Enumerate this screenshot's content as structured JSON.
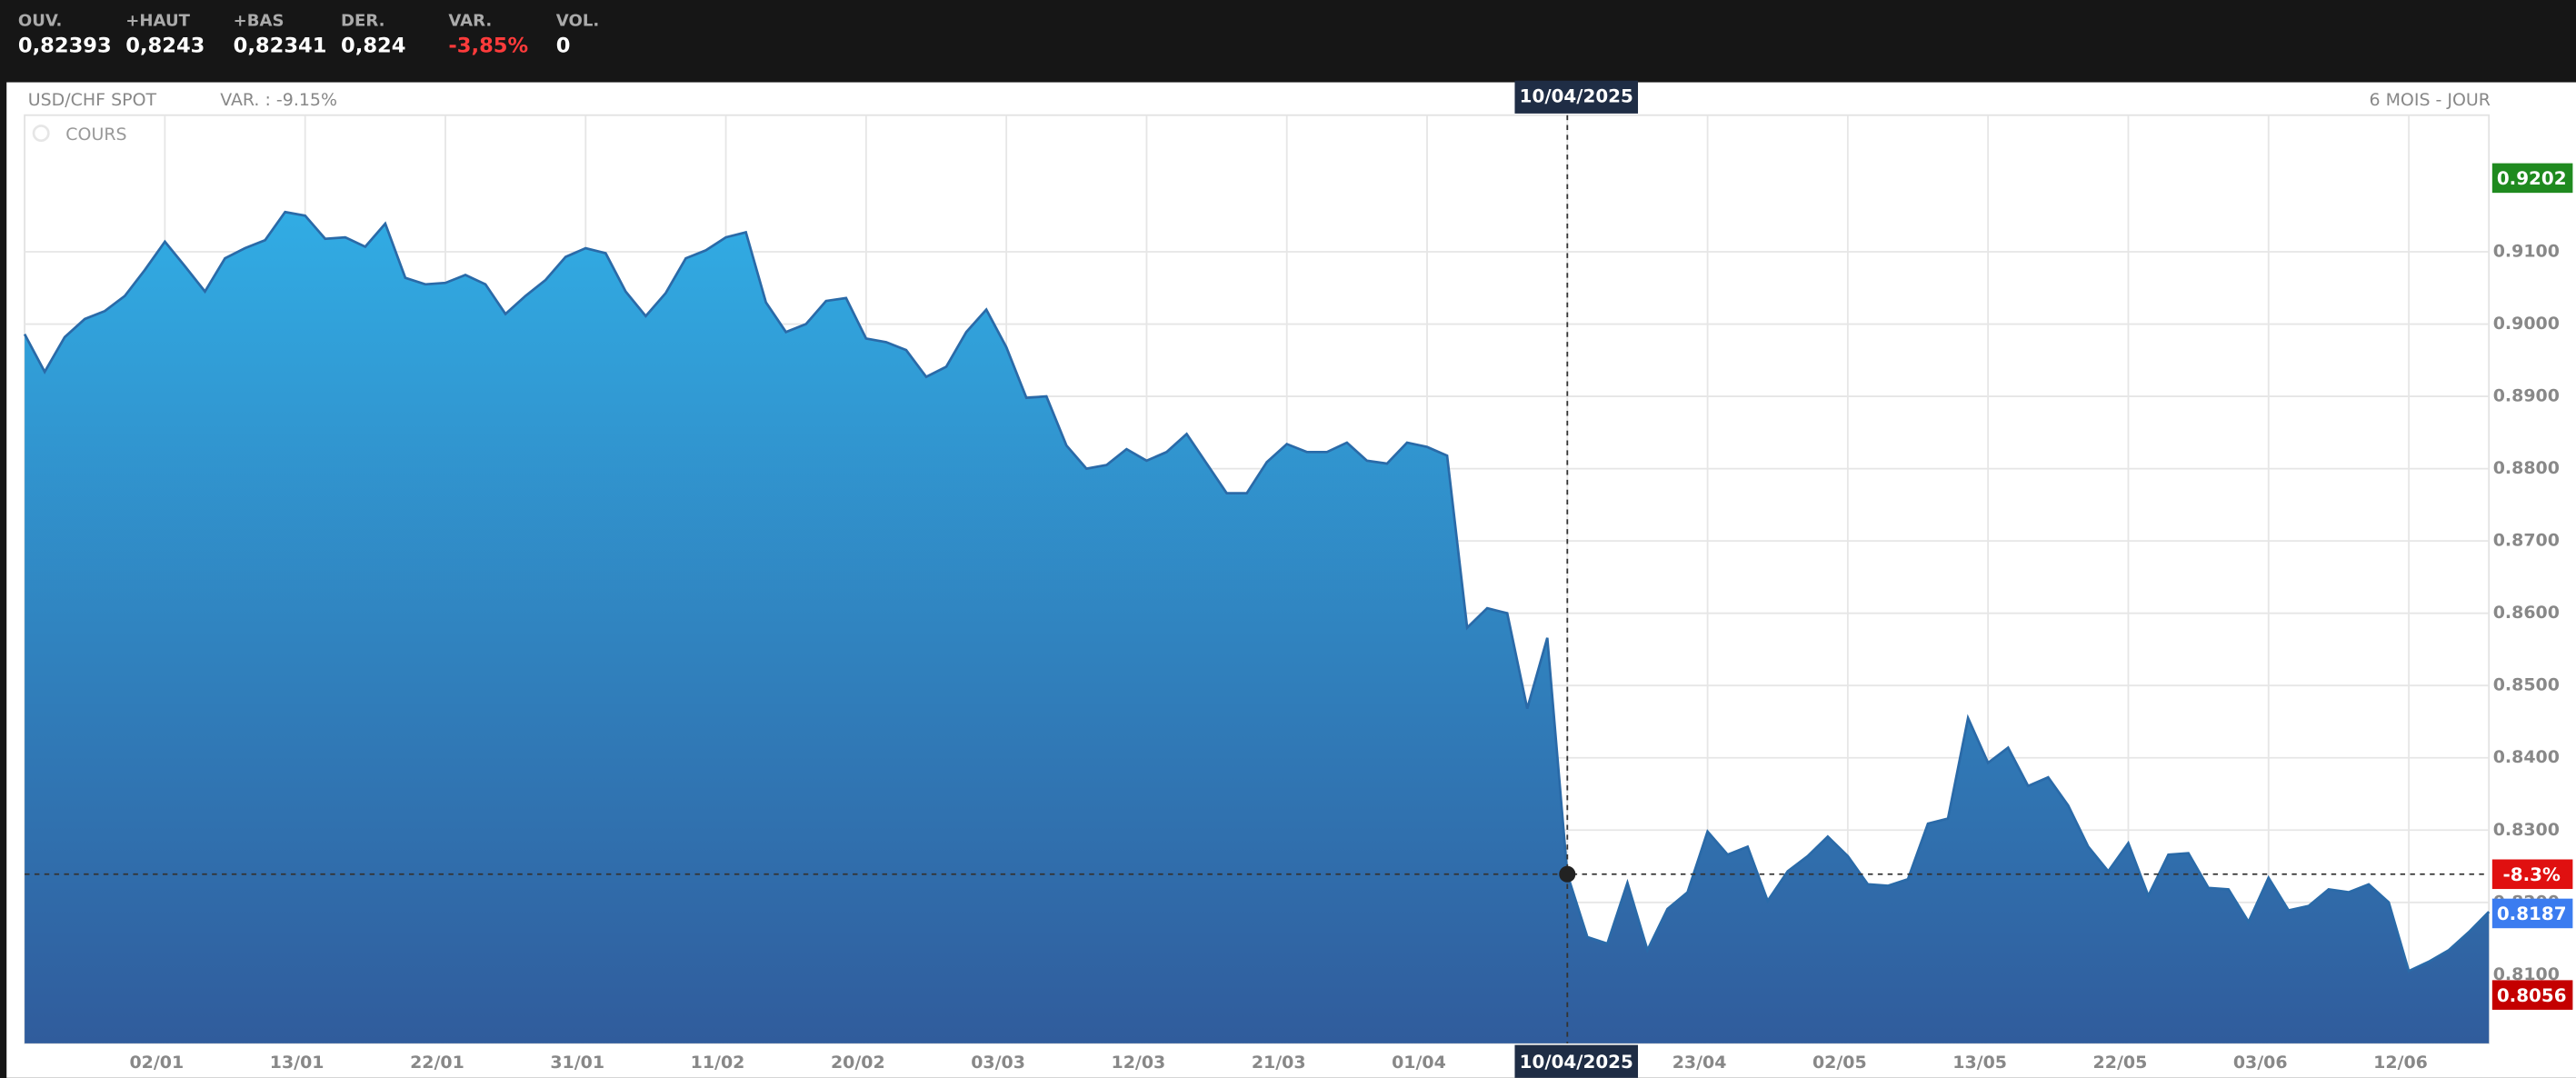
{
  "header": {
    "items": [
      {
        "label": "OUV.",
        "value": "0,82393"
      },
      {
        "label": "+HAUT",
        "value": "0,8243"
      },
      {
        "label": "+BAS",
        "value": "0,82341"
      },
      {
        "label": "DER.",
        "value": "0,824"
      },
      {
        "label": "VAR.",
        "value": "-3,85%",
        "color": "#ff3b3b"
      },
      {
        "label": "VOL.",
        "value": "0"
      }
    ]
  },
  "chart_data": {
    "type": "area",
    "title": "USD/CHF SPOT",
    "subtitle": "VAR. : -9.15%",
    "period": "6 MOIS - JOUR",
    "categories": [
      null,
      null,
      null,
      null,
      null,
      null,
      null,
      "02/01",
      null,
      null,
      null,
      null,
      null,
      null,
      "13/01",
      null,
      null,
      null,
      null,
      null,
      null,
      "22/01",
      null,
      null,
      null,
      null,
      null,
      null,
      "31/01",
      null,
      null,
      null,
      null,
      null,
      null,
      "11/02",
      null,
      null,
      null,
      null,
      null,
      null,
      "20/02",
      null,
      null,
      null,
      null,
      null,
      null,
      "03/03",
      null,
      null,
      null,
      null,
      null,
      null,
      "12/03",
      null,
      null,
      null,
      null,
      null,
      null,
      "21/03",
      null,
      null,
      null,
      null,
      null,
      null,
      "01/04",
      null,
      null,
      null,
      null,
      null,
      null,
      "10/04/2025",
      null,
      null,
      null,
      null,
      null,
      null,
      "23/04",
      null,
      null,
      null,
      null,
      null,
      null,
      "02/05",
      null,
      null,
      null,
      null,
      null,
      null,
      "13/05",
      null,
      null,
      null,
      null,
      null,
      null,
      "22/05",
      null,
      null,
      null,
      null,
      null,
      null,
      "03/06",
      null,
      null,
      null,
      null,
      null,
      null,
      "12/06",
      null,
      null,
      null,
      null
    ],
    "series": [
      {
        "name": "COURS",
        "color": "#2a6aa8",
        "values": [
          0.8986,
          0.8934,
          0.8982,
          0.9007,
          0.9018,
          0.9039,
          0.9075,
          0.9114,
          0.908,
          0.9045,
          0.9091,
          0.9105,
          0.9116,
          0.9155,
          0.915,
          0.9118,
          0.912,
          0.9107,
          0.9139,
          0.9064,
          0.9055,
          0.9057,
          0.9068,
          0.9055,
          0.9014,
          0.9039,
          0.9061,
          0.9093,
          0.9105,
          0.9098,
          0.9045,
          0.9011,
          0.9043,
          0.9091,
          0.9102,
          0.912,
          0.9127,
          0.903,
          0.8989,
          0.9,
          0.9032,
          0.9036,
          0.898,
          0.8975,
          0.8964,
          0.8927,
          0.8941,
          0.8989,
          0.902,
          0.8968,
          0.8898,
          0.89,
          0.8832,
          0.88,
          0.8805,
          0.8827,
          0.8811,
          0.8823,
          0.8848,
          0.8807,
          0.8766,
          0.8766,
          0.8809,
          0.8834,
          0.8823,
          0.8823,
          0.8836,
          0.8811,
          0.8807,
          0.8836,
          0.883,
          0.8818,
          0.858,
          0.8607,
          0.86,
          0.8468,
          0.8566,
          0.8239,
          0.8152,
          0.8143,
          0.8227,
          0.8134,
          0.8191,
          0.8214,
          0.8298,
          0.8266,
          0.8277,
          0.8202,
          0.8243,
          0.8264,
          0.8291,
          0.8264,
          0.8225,
          0.8223,
          0.8232,
          0.8309,
          0.8316,
          0.8455,
          0.8393,
          0.8414,
          0.8361,
          0.8373,
          0.8334,
          0.8277,
          0.8243,
          0.8282,
          0.8209,
          0.8266,
          0.8268,
          0.822,
          0.8218,
          0.8173,
          0.8234,
          0.8189,
          0.8195,
          0.8218,
          0.8214,
          0.8225,
          0.82,
          0.8105,
          0.8118,
          0.8134,
          0.8159,
          0.8187
        ]
      }
    ],
    "ylim": [
      0.8005,
      0.9289
    ],
    "yticks": [
      {
        "value": 0.81,
        "label": "0.8100"
      },
      {
        "value": 0.82,
        "label": "0.8200"
      },
      {
        "value": 0.83,
        "label": "0.8300"
      },
      {
        "value": 0.84,
        "label": "0.8400"
      },
      {
        "value": 0.85,
        "label": "0.8500"
      },
      {
        "value": 0.86,
        "label": "0.8600"
      },
      {
        "value": 0.87,
        "label": "0.8700"
      },
      {
        "value": 0.88,
        "label": "0.8800"
      },
      {
        "value": 0.89,
        "label": "0.8900"
      },
      {
        "value": 0.9,
        "label": "0.9000"
      },
      {
        "value": 0.91,
        "label": "0.9100"
      }
    ],
    "grid": true,
    "high": 0.9202,
    "low": 0.8056,
    "last": 0.8187,
    "crosshair_index": 77,
    "crosshair_change": "-8.3%"
  }
}
